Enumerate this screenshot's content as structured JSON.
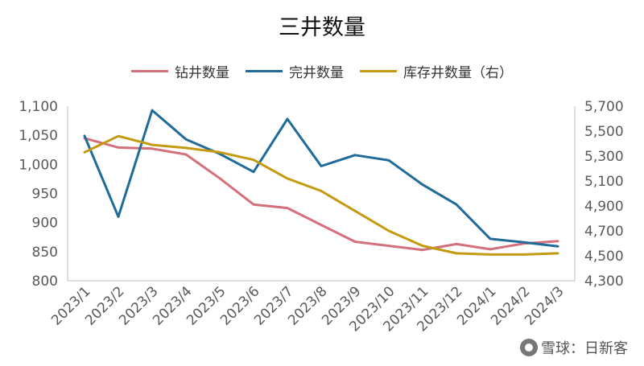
{
  "chart_data": {
    "type": "line",
    "title": "三井数量",
    "categories": [
      "2023/1",
      "2023/2",
      "2023/3",
      "2023/4",
      "2023/5",
      "2023/6",
      "2023/7",
      "2023/8",
      "2023/9",
      "2023/10",
      "2023/11",
      "2023/12",
      "2024/1",
      "2024/2",
      "2024/3"
    ],
    "left_axis": {
      "min": 800,
      "max": 1100,
      "ticks": [
        "800",
        "850",
        "900",
        "950",
        "1,000",
        "1,050",
        "1,100"
      ]
    },
    "right_axis": {
      "min": 4300,
      "max": 5700,
      "ticks": [
        "4,300",
        "4,500",
        "4,700",
        "4,900",
        "5,100",
        "5,300",
        "5,500",
        "5,700"
      ]
    },
    "grid": false,
    "legend_position": "top",
    "series": [
      {
        "name": "钻井数量",
        "axis": "left",
        "color": "#d4707c",
        "values": [
          1045,
          1029,
          1027,
          1017,
          976,
          931,
          925,
          896,
          867,
          860,
          853,
          863,
          854,
          864,
          868
        ]
      },
      {
        "name": "完井数量",
        "axis": "left",
        "color": "#1f6b9a",
        "values": [
          1049,
          910,
          1093,
          1043,
          1018,
          987,
          1078,
          997,
          1016,
          1007,
          965,
          931,
          872,
          866,
          859
        ]
      },
      {
        "name": "库存井数量（右）",
        "axis": "right",
        "color": "#c49a10",
        "values": [
          5330,
          5460,
          5390,
          5365,
          5330,
          5270,
          5120,
          5020,
          4860,
          4700,
          4580,
          4520,
          4510,
          4510,
          4520
        ]
      }
    ]
  },
  "watermark": {
    "text": "雪球：日新客"
  }
}
